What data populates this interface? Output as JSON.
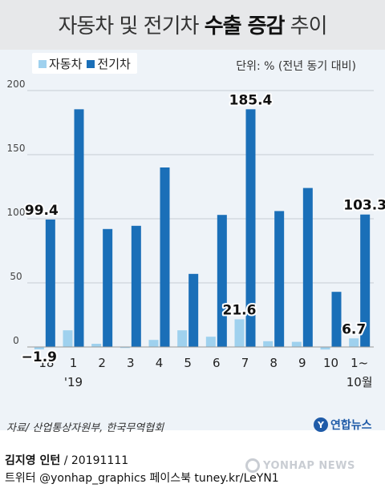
{
  "title": {
    "normal": "자동차 및 전기차 ",
    "bold": "수출 증감",
    "tail": " 추이"
  },
  "legend": {
    "car_label": "자동차",
    "ev_label": "전기차"
  },
  "unit": "단위: % (전년 동기 대비)",
  "source": "자료/ 산업통상자원부, 한국무역협회",
  "logo": {
    "mark": "Y",
    "text": "연합뉴스"
  },
  "credit": {
    "name": "김지영 인턴",
    "date": " / 20191111",
    "line2": "트위터 @yonhap_graphics  페이스북 tuney.kr/LeYN1"
  },
  "watermark": "YONHAP NEWS",
  "colors": {
    "car": "#9fd1ee",
    "ev": "#1a6fb8",
    "grid": "#c6ccd4",
    "axis": "#999999"
  },
  "chart_data": {
    "type": "bar",
    "title": "자동차 및 전기차 수출 증감 추이",
    "unit": "단위: % (전년 동기 대비)",
    "categories": [
      "'18",
      "1",
      "2",
      "3",
      "4",
      "5",
      "6",
      "7",
      "8",
      "9",
      "10",
      "1~"
    ],
    "category_sublabels": [
      "",
      "'19",
      "",
      "",
      "",
      "",
      "",
      "",
      "",
      "",
      "",
      "10월"
    ],
    "series": [
      {
        "name": "자동차",
        "values": [
          -1.9,
          13,
          2.5,
          -0.8,
          5.5,
          13,
          8,
          21.6,
          4.5,
          4,
          -2,
          6.7
        ]
      },
      {
        "name": "전기차",
        "values": [
          99.4,
          185.4,
          92,
          94.5,
          140,
          57,
          103,
          185.4,
          106,
          124,
          43,
          103.3
        ]
      }
    ],
    "yticks": [
      0,
      50,
      100,
      150,
      200
    ],
    "ylim": [
      -5,
      205
    ],
    "grid": true,
    "data_labels": [
      {
        "series": 0,
        "index": 0,
        "text": "−1.9"
      },
      {
        "series": 1,
        "index": 0,
        "text": "99.4"
      },
      {
        "series": 1,
        "index": 7,
        "text": "185.4"
      },
      {
        "series": 0,
        "index": 7,
        "text": "21.6"
      },
      {
        "series": 1,
        "index": 11,
        "text": "103.3"
      },
      {
        "series": 0,
        "index": 11,
        "text": "6.7"
      }
    ]
  }
}
